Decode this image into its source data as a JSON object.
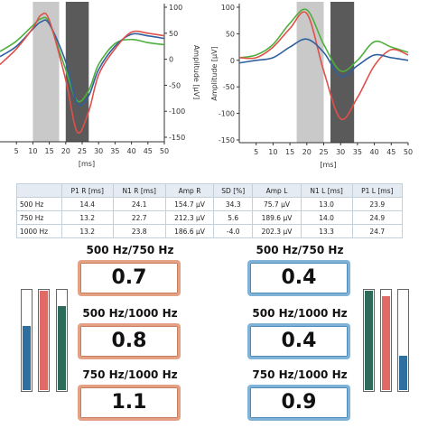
{
  "charts": [
    {
      "type": "line",
      "y_label": "Amplitude [µV]",
      "x_label": "[ms]",
      "y_side": "right",
      "xlim": [
        0,
        50
      ],
      "ylim": [
        -150,
        100
      ],
      "xticks": [
        5,
        10,
        15,
        20,
        25,
        30,
        35,
        40,
        45,
        50
      ],
      "yticks": [
        100,
        50,
        0,
        -50,
        -100,
        -150
      ],
      "bands": [
        {
          "from": 10,
          "to": 18,
          "color": "#c9c9c9"
        },
        {
          "from": 20,
          "to": 27,
          "color": "#5a5a5a"
        }
      ],
      "x": [
        0,
        5,
        10,
        12.5,
        15,
        20,
        23.5,
        27,
        30,
        35,
        40,
        45,
        50
      ],
      "series": [
        {
          "color": "#4caf3c",
          "values": [
            15,
            35,
            65,
            78,
            70,
            -20,
            -80,
            -60,
            -10,
            30,
            38,
            32,
            28
          ]
        },
        {
          "color": "#2f5f9e",
          "values": [
            5,
            25,
            58,
            72,
            68,
            -5,
            -85,
            -70,
            -20,
            25,
            48,
            45,
            40
          ]
        },
        {
          "color": "#e0504a",
          "values": [
            -10,
            20,
            60,
            85,
            75,
            -40,
            -140,
            -100,
            -30,
            20,
            52,
            50,
            45
          ]
        }
      ]
    },
    {
      "type": "line",
      "y_label": "Amplitude [µV]",
      "x_label": "[ms]",
      "y_side": "left",
      "xlim": [
        0,
        50
      ],
      "ylim": [
        -150,
        100
      ],
      "xticks": [
        5,
        10,
        15,
        20,
        25,
        30,
        35,
        40,
        45,
        50
      ],
      "yticks": [
        100,
        50,
        0,
        -50,
        -100,
        -150
      ],
      "bands": [
        {
          "from": 17,
          "to": 25,
          "color": "#c9c9c9"
        },
        {
          "from": 27,
          "to": 34,
          "color": "#5a5a5a"
        }
      ],
      "x": [
        0,
        5,
        10,
        15,
        20,
        25,
        30,
        35,
        40,
        45,
        50
      ],
      "series": [
        {
          "color": "#4caf3c",
          "values": [
            5,
            10,
            30,
            70,
            95,
            30,
            -20,
            0,
            35,
            25,
            15
          ]
        },
        {
          "color": "#e0504a",
          "values": [
            5,
            5,
            25,
            60,
            88,
            -20,
            -110,
            -70,
            -10,
            20,
            10
          ]
        },
        {
          "color": "#2f5f9e",
          "values": [
            -5,
            0,
            5,
            25,
            40,
            15,
            -30,
            -10,
            10,
            5,
            0
          ]
        }
      ]
    }
  ],
  "table": {
    "header": [
      "P1 R [ms]",
      "N1 R [ms]",
      "Amp R",
      "SD [%]",
      "Amp L",
      "N1 L [ms]",
      "P1 L [ms]"
    ],
    "rows": [
      [
        "500 Hz",
        "14.4",
        "24.1",
        "154.7 µV",
        "34.3",
        "75.7 µV",
        "13.0",
        "23.9"
      ],
      [
        "750 Hz",
        "13.2",
        "22.7",
        "212.3 µV",
        "5.6",
        "189.6 µV",
        "14.0",
        "24.9"
      ],
      [
        "1000 Hz",
        "13.2",
        "23.8",
        "186.6 µV",
        "-4.0",
        "202.3 µV",
        "13.3",
        "24.7"
      ]
    ]
  },
  "ratios": {
    "left": [
      {
        "label": "500 Hz/750 Hz",
        "value": "0.7"
      },
      {
        "label": "500 Hz/1000 Hz",
        "value": "0.8"
      },
      {
        "label": "750 Hz/1000 Hz",
        "value": "1.1"
      }
    ],
    "right": [
      {
        "label": "500 Hz/750 Hz",
        "value": "0.4"
      },
      {
        "label": "500 Hz/1000 Hz",
        "value": "0.4"
      },
      {
        "label": "750 Hz/1000 Hz",
        "value": "0.9"
      }
    ]
  },
  "meters": {
    "left": [
      {
        "color": "#2f6fa0",
        "level": 65
      },
      {
        "color": "#e06a66",
        "level": 100
      },
      {
        "color": "#2c6b5a",
        "level": 85
      }
    ],
    "right": [
      {
        "color": "#2c6b5a",
        "level": 100
      },
      {
        "color": "#e06a66",
        "level": 95
      },
      {
        "color": "#2f6fa0",
        "level": 35
      }
    ]
  }
}
